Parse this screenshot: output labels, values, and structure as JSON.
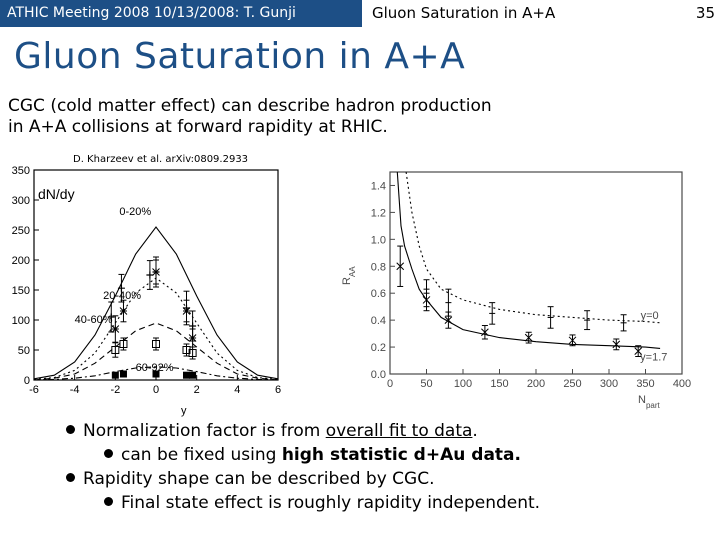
{
  "header": {
    "meeting": "ATHIC Meeting 2008 10/13/2008: T. Gunji",
    "slide_title": "Gluon Saturation in A+A",
    "page_number": "35"
  },
  "title": "Gluon Saturation in A+A",
  "intro": {
    "line1": "CGC (cold matter effect) can describe hadron production",
    "line2": "in A+A collisions at forward rapidity at RHIC."
  },
  "citation": "D. Kharzeev et al. arXiv:0809.2933",
  "bullets": {
    "b1_prefix": "Normalization factor is from ",
    "b1_link": "overall fit to data",
    "b1_suffix": ".",
    "b2_prefix": "can be fixed using ",
    "b2_bold": "high statistic d+Au data.",
    "b3": "Rapidity shape can be described by CGC.",
    "b4": "Final state effect is roughly rapidity independent."
  },
  "chart_data": [
    {
      "type": "line",
      "title": "",
      "ylabel": "dN/dy",
      "xlabel": "y",
      "xlim": [
        -6,
        6
      ],
      "ylim": [
        0,
        350
      ],
      "xticks": [
        -6,
        -4,
        -2,
        0,
        2,
        4,
        6
      ],
      "yticks": [
        0,
        50,
        100,
        150,
        200,
        250,
        300,
        350
      ],
      "series": [
        {
          "name": "0-20%",
          "curve": [
            [
              -6,
              2
            ],
            [
              -5,
              8
            ],
            [
              -4,
              30
            ],
            [
              -3,
              75
            ],
            [
              -2,
              140
            ],
            [
              -1,
              210
            ],
            [
              0,
              255
            ],
            [
              1,
              210
            ],
            [
              2,
              140
            ],
            [
              3,
              75
            ],
            [
              4,
              30
            ],
            [
              5,
              8
            ],
            [
              6,
              2
            ]
          ],
          "points": [
            [
              -2.2,
              105
            ],
            [
              -1.7,
              153
            ],
            [
              0,
              180
            ],
            [
              -0.3,
              175
            ],
            [
              1.5,
              120
            ],
            [
              1.8,
              90
            ]
          ],
          "errors": [
            25,
            23,
            25,
            24,
            28,
            25
          ],
          "style": "solid",
          "marker": "+"
        },
        {
          "name": "20-40%",
          "curve": [
            [
              -6,
              1
            ],
            [
              -5,
              4
            ],
            [
              -4,
              16
            ],
            [
              -3,
              45
            ],
            [
              -2,
              95
            ],
            [
              -1,
              145
            ],
            [
              0,
              170
            ],
            [
              1,
              145
            ],
            [
              2,
              95
            ],
            [
              3,
              45
            ],
            [
              4,
              16
            ],
            [
              5,
              4
            ],
            [
              6,
              1
            ]
          ],
          "points": [
            [
              -2,
              85
            ],
            [
              -1.6,
              115
            ],
            [
              0,
              180
            ],
            [
              1.5,
              115
            ],
            [
              1.8,
              70
            ]
          ],
          "errors": [
            22,
            18,
            20,
            18,
            15
          ],
          "style": "dotted",
          "marker": "*"
        },
        {
          "name": "40-60%",
          "curve": [
            [
              -6,
              0
            ],
            [
              -5,
              3
            ],
            [
              -4,
              10
            ],
            [
              -3,
              28
            ],
            [
              -2,
              55
            ],
            [
              -1,
              82
            ],
            [
              0,
              95
            ],
            [
              1,
              82
            ],
            [
              2,
              55
            ],
            [
              3,
              28
            ],
            [
              4,
              10
            ],
            [
              5,
              3
            ],
            [
              6,
              0
            ]
          ],
          "points": [
            [
              -2,
              50
            ],
            [
              -1.6,
              60
            ],
            [
              0,
              60
            ],
            [
              1.5,
              50
            ],
            [
              1.8,
              45
            ]
          ],
          "errors": [
            12,
            10,
            10,
            10,
            10
          ],
          "style": "dashed",
          "marker": "square-open"
        },
        {
          "name": "60-92%",
          "curve": [
            [
              -6,
              0
            ],
            [
              -5,
              1
            ],
            [
              -4,
              3
            ],
            [
              -3,
              7
            ],
            [
              -2,
              14
            ],
            [
              -1,
              20
            ],
            [
              0,
              22
            ],
            [
              1,
              20
            ],
            [
              2,
              14
            ],
            [
              3,
              7
            ],
            [
              4,
              3
            ],
            [
              5,
              1
            ],
            [
              6,
              0
            ]
          ],
          "points": [
            [
              -2,
              8
            ],
            [
              -1.6,
              10
            ],
            [
              0,
              10
            ],
            [
              1.5,
              8
            ],
            [
              1.8,
              8
            ]
          ],
          "errors": [
            0,
            0,
            0,
            0,
            0
          ],
          "style": "dashdot",
          "marker": "square-filled"
        }
      ]
    },
    {
      "type": "line",
      "title": "",
      "ylabel": "R_AA",
      "xlabel": "N_part",
      "xlim": [
        0,
        400
      ],
      "ylim": [
        0,
        1.5
      ],
      "xticks": [
        0,
        50,
        100,
        150,
        200,
        250,
        300,
        350,
        400
      ],
      "yticks": [
        0,
        0.2,
        0.4,
        0.6,
        0.8,
        1.0,
        1.2,
        1.4
      ],
      "annotations": [
        "y=0",
        "y=1.7"
      ],
      "series": [
        {
          "name": "y=0",
          "style": "dotted",
          "curve": [
            [
              22,
              1.5
            ],
            [
              30,
              1.2
            ],
            [
              40,
              0.95
            ],
            [
              50,
              0.78
            ],
            [
              70,
              0.63
            ],
            [
              100,
              0.55
            ],
            [
              150,
              0.48
            ],
            [
              200,
              0.44
            ],
            [
              250,
              0.42
            ],
            [
              300,
              0.4
            ],
            [
              350,
              0.39
            ],
            [
              370,
              0.38
            ]
          ],
          "points": [
            [
              50,
              0.6
            ],
            [
              80,
              0.53
            ],
            [
              140,
              0.45
            ],
            [
              220,
              0.42
            ],
            [
              270,
              0.4
            ],
            [
              320,
              0.38
            ]
          ],
          "errors": [
            0.1,
            0.1,
            0.08,
            0.08,
            0.07,
            0.06
          ],
          "marker": "bar"
        },
        {
          "name": "y=1.7",
          "style": "solid",
          "curve": [
            [
              10,
              1.5
            ],
            [
              15,
              1.1
            ],
            [
              20,
              0.95
            ],
            [
              30,
              0.78
            ],
            [
              40,
              0.63
            ],
            [
              50,
              0.55
            ],
            [
              70,
              0.42
            ],
            [
              100,
              0.33
            ],
            [
              150,
              0.27
            ],
            [
              200,
              0.24
            ],
            [
              250,
              0.22
            ],
            [
              300,
              0.21
            ],
            [
              350,
              0.2
            ],
            [
              370,
              0.19
            ]
          ],
          "points": [
            [
              14,
              0.8
            ],
            [
              50,
              0.55
            ],
            [
              80,
              0.4
            ],
            [
              130,
              0.31
            ],
            [
              190,
              0.27
            ],
            [
              250,
              0.25
            ],
            [
              310,
              0.22
            ],
            [
              340,
              0.17
            ]
          ],
          "errors": [
            0.15,
            0.08,
            0.06,
            0.05,
            0.04,
            0.04,
            0.04,
            0.04
          ],
          "marker": "x"
        }
      ]
    }
  ]
}
